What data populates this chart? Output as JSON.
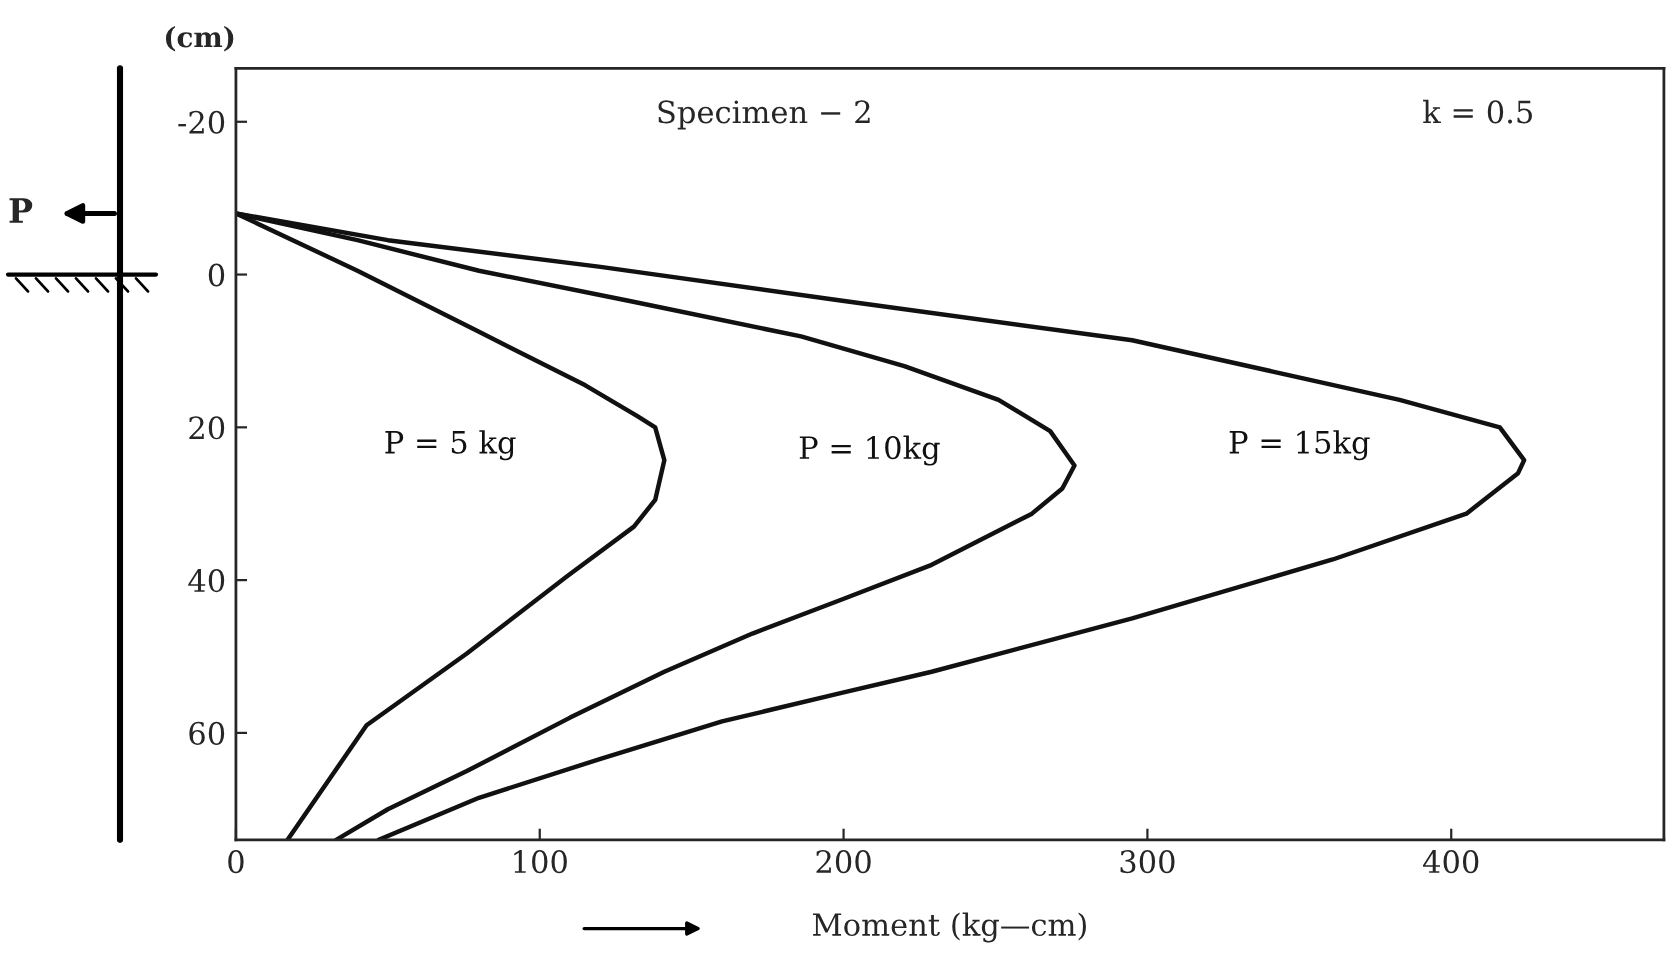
{
  "chart_data": {
    "type": "line",
    "xlabel": "Moment (kg—cm)",
    "ylabel": "(cm)",
    "annotations": [
      "Specimen − 2",
      "k = 0.5",
      "P"
    ],
    "series": [
      {
        "name": "P = 5 kg",
        "color": "#111111",
        "x": [
          0,
          40,
          80,
          115,
          132,
          138,
          141,
          138,
          131,
          109,
          76,
          43,
          17
        ],
        "values": [
          -8,
          -0.5,
          7.5,
          14.5,
          18.5,
          20,
          24.3,
          29.5,
          33,
          39.5,
          49.6,
          59,
          74
        ]
      },
      {
        "name": "P = 10kg",
        "color": "#111111",
        "x": [
          0,
          40,
          80,
          130,
          186,
          220,
          251,
          268,
          276,
          272,
          262,
          229,
          199,
          170,
          141,
          110,
          76,
          50,
          33
        ],
        "values": [
          -8,
          -4.5,
          -0.5,
          3.5,
          8.1,
          12,
          16.4,
          20.5,
          25,
          28,
          31.3,
          38,
          42.6,
          47,
          52,
          58,
          65,
          70,
          74
        ]
      },
      {
        "name": "P = 15kg",
        "color": "#111111",
        "x": [
          0,
          50,
          120,
          199,
          295,
          383,
          416,
          424,
          422,
          405,
          361,
          295,
          229,
          199,
          160,
          120,
          80,
          47
        ],
        "values": [
          -8,
          -4.5,
          -1,
          3.4,
          8.6,
          16.4,
          20,
          24.3,
          26,
          31.3,
          37.3,
          45,
          52,
          54.8,
          58.5,
          63.4,
          68.5,
          74
        ]
      }
    ],
    "xlim": [
      0,
      470
    ],
    "ylim": [
      74,
      -27
    ],
    "xticks": [
      0,
      100,
      200,
      300,
      400
    ],
    "yticks": [
      -20,
      0,
      20,
      40,
      60
    ],
    "grid": false,
    "legend": false,
    "marker": "none",
    "line_style": "solid"
  }
}
